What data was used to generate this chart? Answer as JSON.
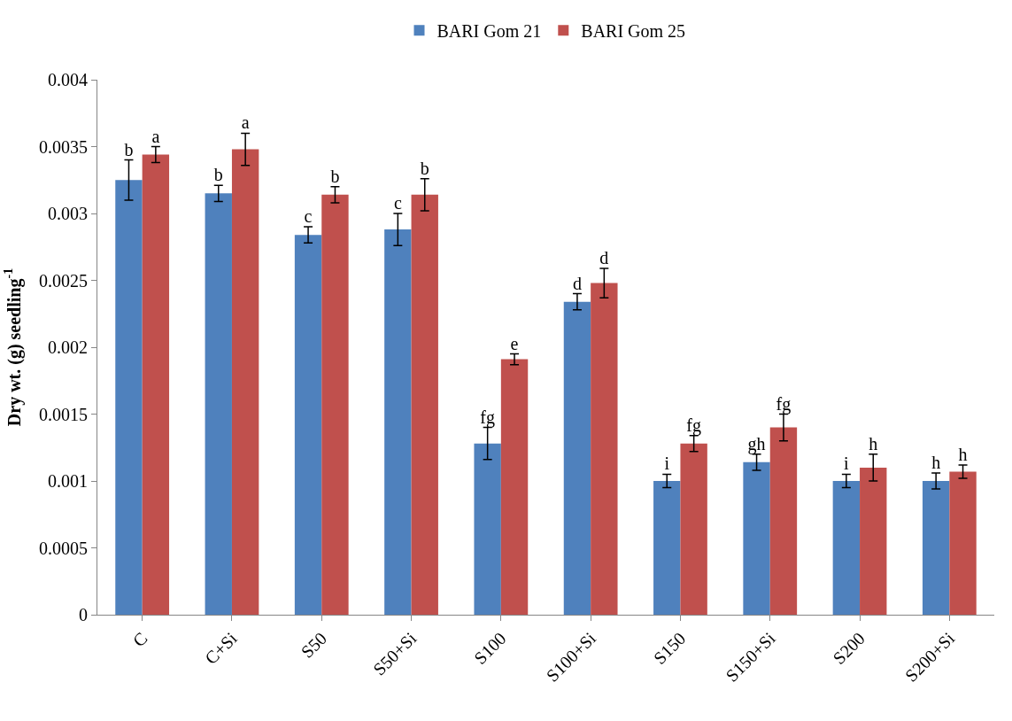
{
  "chart_data": {
    "type": "bar",
    "ylabel": "Dry wt. (g) seedling$^{-1}$",
    "categories": [
      "C",
      "C+Si",
      "S50",
      "S50+Si",
      "S100",
      "S100+Si",
      "S150",
      "S150+Si",
      "S200",
      "S200+Si"
    ],
    "series": [
      {
        "name": "BARI Gom 21",
        "color": "#4f81bd",
        "values": [
          0.00325,
          0.00315,
          0.00284,
          0.00288,
          0.00128,
          0.00234,
          0.001,
          0.00114,
          0.001,
          0.001
        ],
        "errors": [
          0.00015,
          6e-05,
          6e-05,
          0.00012,
          0.00012,
          6e-05,
          5e-05,
          6e-05,
          5e-05,
          6e-05
        ],
        "value_labels": [
          "b",
          "b",
          "c",
          "c",
          "fg",
          "d",
          "i",
          "gh",
          "i",
          "h"
        ]
      },
      {
        "name": "BARI Gom 25",
        "color": "#c0504d",
        "values": [
          0.00344,
          0.00348,
          0.00314,
          0.00314,
          0.00191,
          0.00248,
          0.00128,
          0.0014,
          0.0011,
          0.00107
        ],
        "errors": [
          6e-05,
          0.00012,
          6e-05,
          0.00012,
          4e-05,
          0.00011,
          6e-05,
          0.0001,
          0.0001,
          5e-05
        ],
        "value_labels": [
          "a",
          "a",
          "b",
          "b",
          "e",
          "d",
          "fg",
          "fg",
          "h",
          "h"
        ]
      }
    ],
    "ylim": [
      0,
      0.004
    ],
    "yticks": [
      0,
      0.0005,
      0.001,
      0.0015,
      0.002,
      0.0025,
      0.003,
      0.0035,
      0.004
    ],
    "grid": false,
    "legend": "top"
  }
}
